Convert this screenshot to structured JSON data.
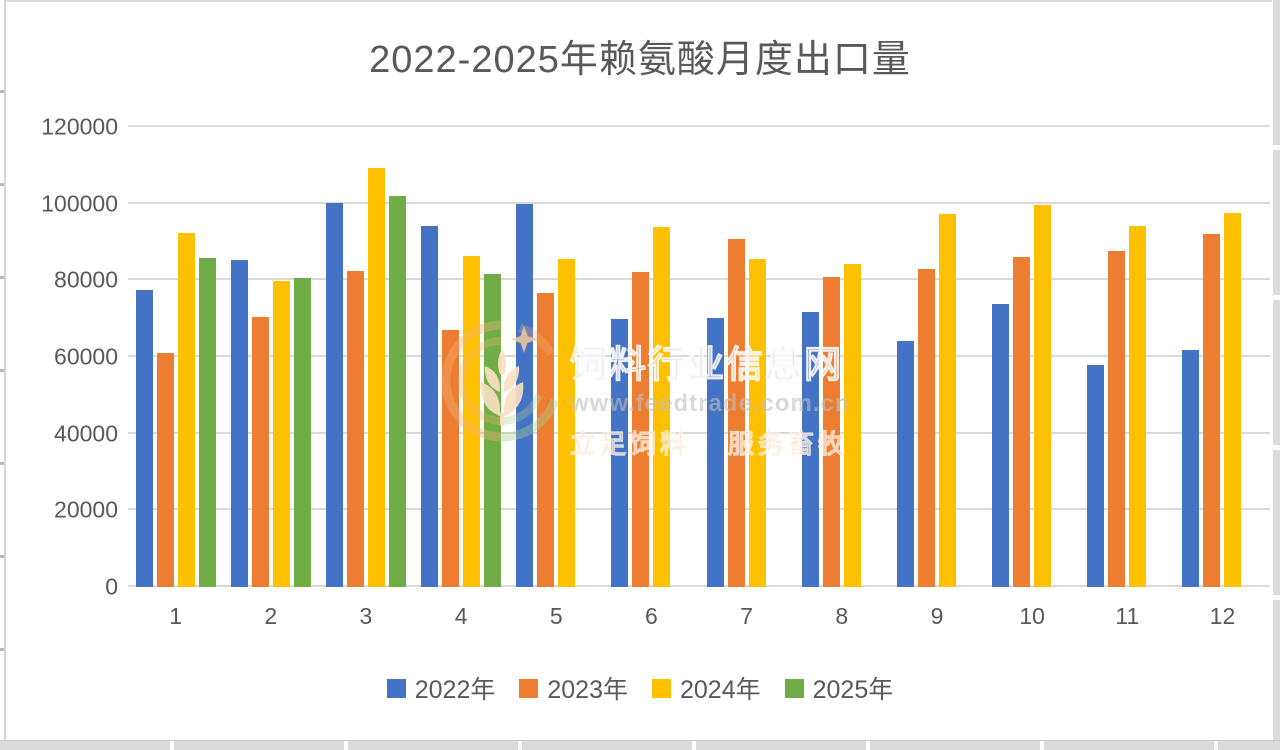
{
  "chart_data": {
    "type": "bar",
    "title": "2022-2025年赖氨酸月度出口量",
    "categories": [
      "1",
      "2",
      "3",
      "4",
      "5",
      "6",
      "7",
      "8",
      "9",
      "10",
      "11",
      "12"
    ],
    "series": [
      {
        "name": "2022年",
        "color": "#4472C4",
        "values": [
          77500,
          85300,
          100300,
          94200,
          99800,
          69900,
          70200,
          71800,
          64200,
          73800,
          57800,
          61900
        ]
      },
      {
        "name": "2023年",
        "color": "#ED7D31",
        "values": [
          61100,
          70500,
          82400,
          67000,
          76700,
          82200,
          90800,
          81000,
          82900,
          86100,
          87600,
          92100
        ]
      },
      {
        "name": "2024年",
        "color": "#FFC000",
        "values": [
          92300,
          79800,
          109300,
          86300,
          85500,
          93900,
          85500,
          84200,
          97300,
          99600,
          94100,
          97500
        ]
      },
      {
        "name": "2025年",
        "color": "#70AD47",
        "values": [
          85900,
          80700,
          102100,
          81600,
          null,
          null,
          null,
          null,
          null,
          null,
          null,
          null
        ]
      }
    ],
    "ylim": [
      0,
      120000
    ],
    "ytick_step": 20000,
    "ytick_labels": [
      "0",
      "20000",
      "40000",
      "60000",
      "80000",
      "100000",
      "120000"
    ],
    "grid": "horizontal-light-gray",
    "legend_position": "bottom",
    "colors": {
      "axis_text": "#595959",
      "gridline": "#D9D9D9",
      "background": "#FFFFFF"
    }
  },
  "watermark": {
    "site_name": "饲料行业信息网",
    "url": "www.feedtrade.com.cn",
    "slogan_left": "立足饲料",
    "slogan_right": "服务畜牧"
  }
}
